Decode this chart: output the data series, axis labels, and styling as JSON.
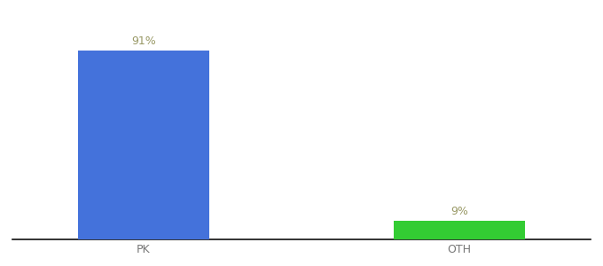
{
  "categories": [
    "PK",
    "OTH"
  ],
  "values": [
    91,
    9
  ],
  "bar_colors": [
    "#4472db",
    "#33cc33"
  ],
  "bar_width": 0.5,
  "ylim": [
    0,
    105
  ],
  "background_color": "#ffffff",
  "label_color": "#999966",
  "tick_color": "#777777",
  "spine_color": "#111111",
  "label_fontsize": 9,
  "tick_fontsize": 9,
  "x_positions": [
    1.0,
    2.2
  ]
}
